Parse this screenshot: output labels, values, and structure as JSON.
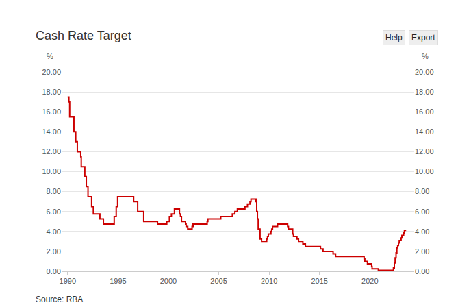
{
  "chart_data": {
    "type": "line",
    "title": "Cash Rate Target",
    "ylabel": "%",
    "y2label": "%",
    "buttons": [
      "Help",
      "Export"
    ],
    "source": "Source: RBA",
    "color": "#cc0000",
    "grid": true,
    "x": [
      1990.0,
      1990.12,
      1990.2,
      1990.62,
      1990.8,
      1990.96,
      1991.3,
      1991.35,
      1991.7,
      1991.85,
      1992.02,
      1992.38,
      1992.55,
      1993.2,
      1993.55,
      1994.62,
      1994.82,
      1994.96,
      1996.55,
      1996.95,
      1997.55,
      1998.92,
      1999.84,
      2000.1,
      2000.3,
      2000.6,
      2001.1,
      2001.2,
      2001.3,
      2001.7,
      2001.76,
      2001.92,
      2002.35,
      2002.45,
      2003.85,
      2003.92,
      2005.2,
      2006.35,
      2006.6,
      2006.85,
      2007.6,
      2007.85,
      2008.1,
      2008.2,
      2008.7,
      2008.77,
      2008.84,
      2008.92,
      2009.1,
      2009.25,
      2009.76,
      2009.84,
      2009.92,
      2010.18,
      2010.26,
      2010.34,
      2010.84,
      2011.84,
      2011.92,
      2012.34,
      2012.42,
      2012.76,
      2012.92,
      2013.35,
      2013.6,
      2015.1,
      2015.35,
      2016.35,
      2016.6,
      2019.43,
      2019.5,
      2019.76,
      2020.18,
      2020.22,
      2020.84,
      2022.34,
      2022.43,
      2022.51,
      2022.6,
      2022.68,
      2022.76,
      2022.84,
      2022.92,
      2023.1,
      2023.18,
      2023.35,
      2023.43,
      2023.6
    ],
    "values": [
      17.5,
      17.0,
      15.5,
      14.0,
      13.0,
      12.0,
      11.5,
      10.5,
      9.5,
      8.5,
      7.5,
      6.5,
      5.75,
      5.25,
      4.75,
      5.5,
      6.5,
      7.5,
      7.0,
      6.0,
      5.0,
      4.75,
      5.0,
      5.5,
      5.75,
      6.25,
      5.75,
      5.5,
      5.0,
      4.75,
      4.5,
      4.25,
      4.5,
      4.75,
      5.0,
      5.25,
      5.5,
      5.75,
      6.0,
      6.25,
      6.5,
      6.75,
      7.0,
      7.25,
      7.0,
      6.0,
      5.25,
      4.25,
      3.25,
      3.0,
      3.25,
      3.5,
      3.75,
      4.0,
      4.25,
      4.5,
      4.75,
      4.5,
      4.25,
      3.75,
      3.5,
      3.25,
      3.0,
      2.75,
      2.5,
      2.25,
      2.0,
      1.75,
      1.5,
      1.25,
      1.0,
      0.75,
      0.5,
      0.25,
      0.1,
      0.35,
      0.85,
      1.35,
      1.85,
      2.35,
      2.6,
      2.85,
      3.1,
      3.35,
      3.6,
      3.85,
      4.1,
      4.1
    ],
    "xlim": [
      1989.4,
      2024.4
    ],
    "xticks": [
      1990,
      1995,
      2000,
      2005,
      2010,
      2015,
      2020
    ],
    "ylim": [
      0,
      20
    ],
    "yticks": [
      {
        "value": 0,
        "label": "0.00"
      },
      {
        "value": 2,
        "label": "2.00"
      },
      {
        "value": 4,
        "label": "4.00"
      },
      {
        "value": 6,
        "label": "6.00"
      },
      {
        "value": 8,
        "label": "8.00"
      },
      {
        "value": 10,
        "label": "10.00"
      },
      {
        "value": 12,
        "label": "12.00"
      },
      {
        "value": 14,
        "label": "14.00"
      },
      {
        "value": 16,
        "label": "16.00"
      },
      {
        "value": 18,
        "label": "18.00"
      },
      {
        "value": 20,
        "label": "20.00"
      }
    ],
    "y2lim": [
      0,
      20
    ],
    "y2ticks": [
      {
        "value": 0,
        "label": "0.00"
      },
      {
        "value": 2,
        "label": "2.00"
      },
      {
        "value": 4,
        "label": "4.00"
      },
      {
        "value": 6,
        "label": "6.00"
      },
      {
        "value": 8,
        "label": "8.00"
      },
      {
        "value": 10,
        "label": "10.00"
      },
      {
        "value": 12,
        "label": "12.00"
      },
      {
        "value": 14,
        "label": "14.00"
      },
      {
        "value": 16,
        "label": "16.00"
      },
      {
        "value": 18,
        "label": "18.00"
      },
      {
        "value": 20,
        "label": "20.00"
      }
    ]
  }
}
